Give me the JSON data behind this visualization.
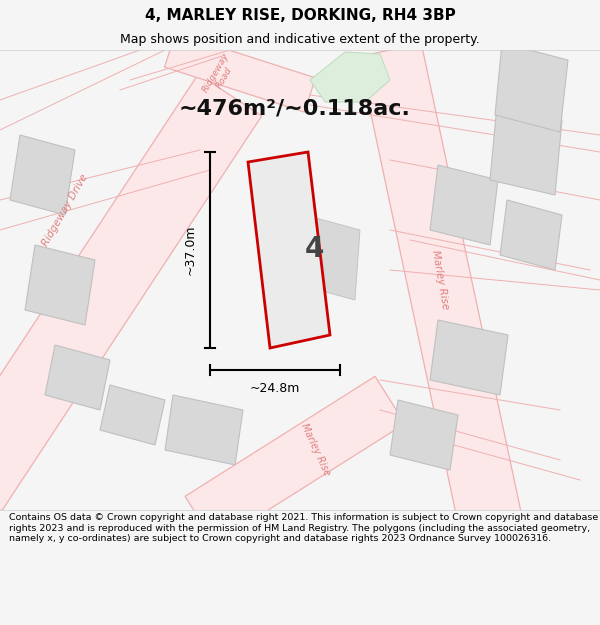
{
  "title": "4, MARLEY RISE, DORKING, RH4 3BP",
  "subtitle": "Map shows position and indicative extent of the property.",
  "area_text": "~476m²/~0.118ac.",
  "plot_number": "4",
  "dim_vertical": "~37.0m",
  "dim_horizontal": "~24.8m",
  "copyright_text": "Contains OS data © Crown copyright and database right 2021. This information is subject to Crown copyright and database rights 2023 and is reproduced with the permission of HM Land Registry. The polygons (including the associated geometry, namely x, y co-ordinates) are subject to Crown copyright and database rights 2023 Ordnance Survey 100026316.",
  "bg_color": "#f5f5f5",
  "map_bg": "#ffffff",
  "road_color": "#f0b0b0",
  "road_lw": 0.9,
  "plot_fill": "#e8e8e8",
  "plot_edge": "#cc0000",
  "block_fill": "#d8d8d8",
  "block_edge": "#c0c0c0",
  "green_fill": "#ddeedd",
  "green_edge": "#bbddbb",
  "label_color": "#e08080",
  "title_fontsize": 11,
  "subtitle_fontsize": 9,
  "area_fontsize": 16,
  "footer_fontsize": 6.8
}
